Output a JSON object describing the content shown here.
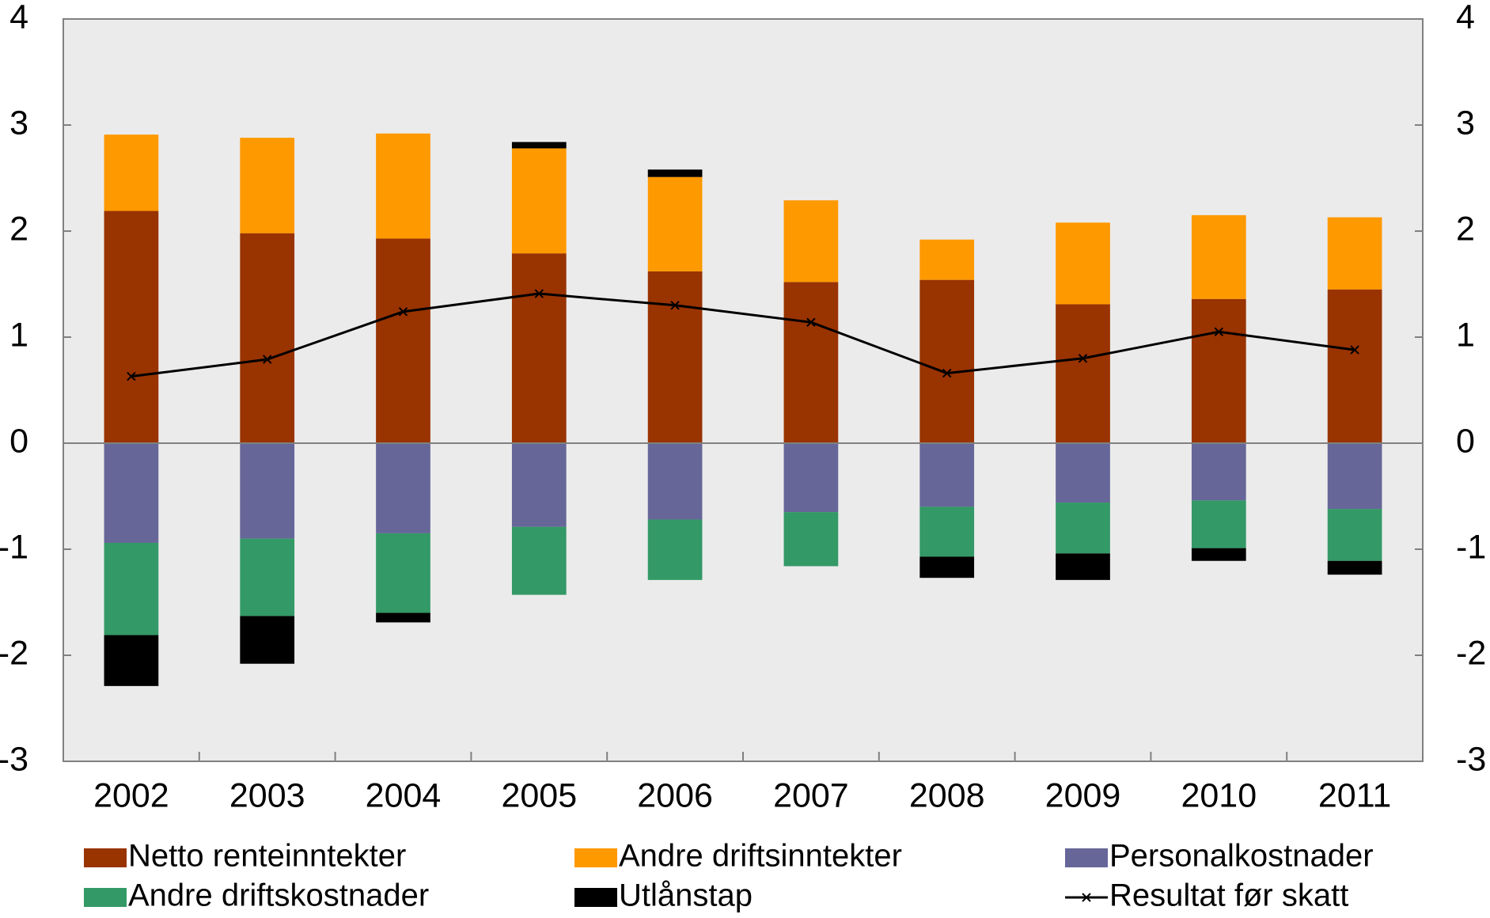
{
  "chart_data": {
    "type": "bar",
    "stacked": true,
    "categories": [
      "2002",
      "2003",
      "2004",
      "2005",
      "2006",
      "2007",
      "2008",
      "2009",
      "2010",
      "2011"
    ],
    "series": [
      {
        "name": "Netto renteinntekter",
        "color": "#993300",
        "values": [
          2.19,
          1.98,
          1.93,
          1.79,
          1.62,
          1.52,
          1.54,
          1.31,
          1.36,
          1.45
        ]
      },
      {
        "name": "Andre driftsinntekter",
        "color": "#ff9900",
        "values": [
          0.72,
          0.9,
          0.99,
          0.99,
          0.89,
          0.77,
          0.38,
          0.77,
          0.79,
          0.68
        ]
      },
      {
        "name": "Personalkostnader",
        "color": "#666699",
        "values": [
          -0.94,
          -0.9,
          -0.85,
          -0.79,
          -0.72,
          -0.65,
          -0.6,
          -0.56,
          -0.54,
          -0.62
        ]
      },
      {
        "name": "Andre driftskostnader",
        "color": "#339966",
        "values": [
          -0.87,
          -0.73,
          -0.75,
          -0.64,
          -0.57,
          -0.51,
          -0.47,
          -0.48,
          -0.45,
          -0.49
        ]
      },
      {
        "name": "Utlånstap",
        "color": "#000000",
        "values": [
          -0.48,
          -0.45,
          -0.09,
          0.06,
          0.07,
          0,
          -0.2,
          -0.25,
          -0.12,
          -0.13
        ]
      },
      {
        "name": "Resultat før skatt",
        "color": "#000000",
        "type": "line",
        "values": [
          0.63,
          0.79,
          1.24,
          1.41,
          1.3,
          1.14,
          0.66,
          0.8,
          1.05,
          0.88
        ]
      }
    ],
    "ylim": [
      -3,
      4
    ],
    "yticks": [
      -3,
      -2,
      -1,
      0,
      1,
      2,
      3,
      4
    ],
    "y2lim": [
      -3,
      4
    ],
    "y2ticks": [
      -3,
      -2,
      -1,
      0,
      1,
      2,
      3,
      4
    ]
  }
}
